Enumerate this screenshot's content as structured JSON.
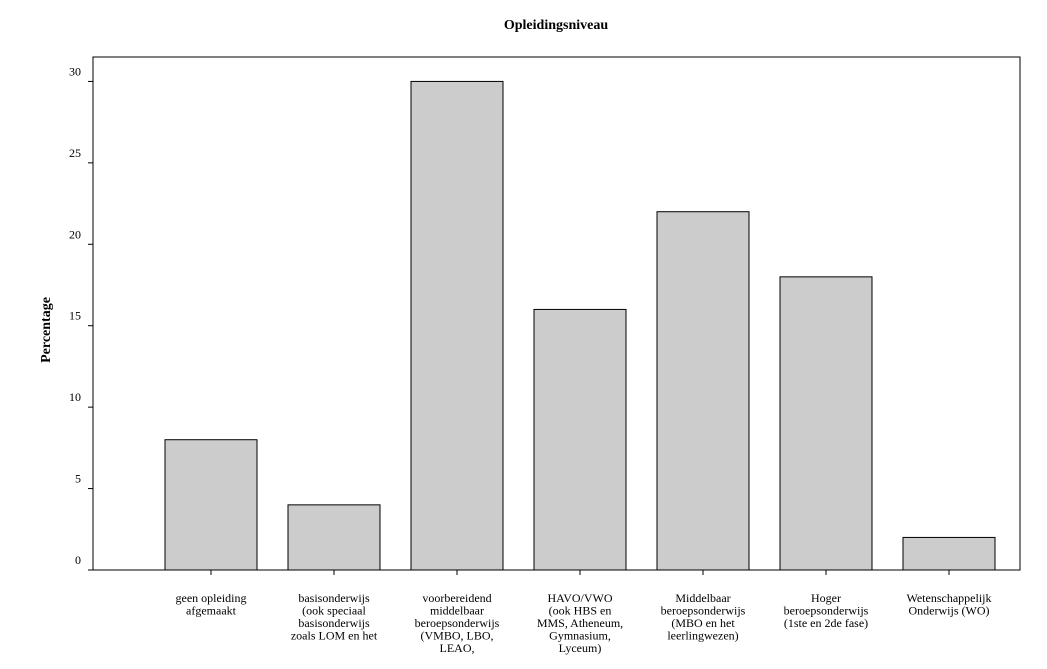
{
  "chart_data": {
    "type": "bar",
    "title": "Opleidingsniveau",
    "y_label": "Percentage",
    "categories": [
      [
        "geen opleiding",
        "afgemaakt"
      ],
      [
        "basisonderwijs",
        "(ook speciaal",
        "basisonderwijs",
        "zoals LOM en het"
      ],
      [
        "voorbereidend",
        "middelbaar",
        "beroepsonderwijs",
        "(VMBO, LBO,",
        "LEAO,"
      ],
      [
        "HAVO/VWO",
        "(ook HBS en",
        "MMS, Atheneum,",
        "Gymnasium,",
        "Lyceum)"
      ],
      [
        "Middelbaar",
        "beroepsonderwijs",
        "(MBO en het",
        "leerlingwezen)"
      ],
      [
        "Hoger",
        "beroepsonderwijs",
        "(1ste en 2de fase)"
      ],
      [
        "Wetenschappelijk",
        "Onderwijs (WO)"
      ]
    ],
    "values": [
      8,
      4,
      30,
      16,
      22,
      18,
      2
    ],
    "color": "#cccccc",
    "ylim": [
      0,
      31.5
    ],
    "yticks": [
      0,
      5,
      10,
      15,
      20,
      25,
      30
    ],
    "grid": false
  }
}
